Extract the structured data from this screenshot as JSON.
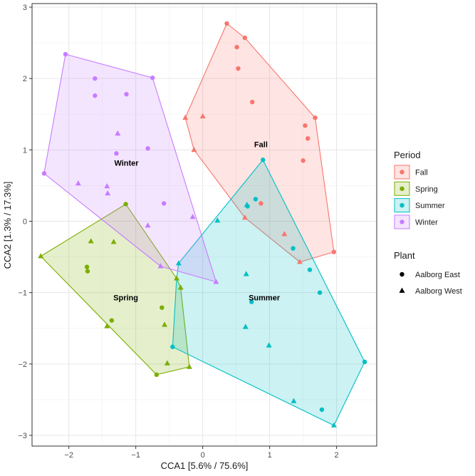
{
  "chart_data": {
    "type": "scatter",
    "title": "",
    "xlabel": "CCA1 [5.6% / 75.6%]",
    "ylabel": "CCA2 [1.3% / 17.3%]",
    "xlim": [
      -2.55,
      2.6
    ],
    "ylim": [
      -3.15,
      3.05
    ],
    "xticks": [
      -2,
      -1,
      0,
      1,
      2
    ],
    "yticks": [
      -3,
      -2,
      -1,
      0,
      1,
      2,
      3
    ],
    "grid": true,
    "legend_position": "right",
    "color_legend": {
      "title": "Period",
      "entries": [
        {
          "name": "Fall",
          "color": "#F8766D"
        },
        {
          "name": "Spring",
          "color": "#7CAE00"
        },
        {
          "name": "Summer",
          "color": "#00BFC4"
        },
        {
          "name": "Winter",
          "color": "#C77CFF"
        }
      ]
    },
    "shape_legend": {
      "title": "Plant",
      "entries": [
        {
          "name": "Aalborg East",
          "shape": "circle"
        },
        {
          "name": "Aalborg West",
          "shape": "triangle"
        }
      ]
    },
    "groups": [
      {
        "name": "Fall",
        "label": "Fall",
        "label_pos": [
          0.87,
          1.08
        ],
        "color": "#F8766D",
        "hull": [
          [
            0.36,
            2.77
          ],
          [
            0.63,
            2.57
          ],
          [
            1.68,
            1.45
          ],
          [
            1.96,
            -0.43
          ],
          [
            1.45,
            -0.57
          ],
          [
            0.63,
            0.05
          ],
          [
            -0.13,
            1.0
          ],
          [
            -0.26,
            1.45
          ]
        ],
        "points": [
          {
            "x": 0.36,
            "y": 2.77,
            "shape": "circle"
          },
          {
            "x": 0.63,
            "y": 2.57,
            "shape": "circle"
          },
          {
            "x": 0.51,
            "y": 2.44,
            "shape": "circle"
          },
          {
            "x": 0.53,
            "y": 2.14,
            "shape": "circle"
          },
          {
            "x": 0.74,
            "y": 1.67,
            "shape": "circle"
          },
          {
            "x": 1.68,
            "y": 1.45,
            "shape": "circle"
          },
          {
            "x": 1.53,
            "y": 1.34,
            "shape": "circle"
          },
          {
            "x": 1.57,
            "y": 1.16,
            "shape": "circle"
          },
          {
            "x": 1.5,
            "y": 0.85,
            "shape": "circle"
          },
          {
            "x": 0.87,
            "y": 0.25,
            "shape": "circle"
          },
          {
            "x": 1.96,
            "y": -0.43,
            "shape": "circle"
          },
          {
            "x": -0.26,
            "y": 1.45,
            "shape": "triangle"
          },
          {
            "x": 0.0,
            "y": 1.47,
            "shape": "triangle"
          },
          {
            "x": -0.13,
            "y": 1.0,
            "shape": "triangle"
          },
          {
            "x": 0.63,
            "y": 0.05,
            "shape": "triangle"
          },
          {
            "x": 1.22,
            "y": -0.18,
            "shape": "triangle"
          },
          {
            "x": 1.45,
            "y": -0.57,
            "shape": "triangle"
          }
        ]
      },
      {
        "name": "Spring",
        "label": "Spring",
        "label_pos": [
          -1.15,
          -1.07
        ],
        "color": "#7CAE00",
        "hull": [
          [
            -1.15,
            0.24
          ],
          [
            -0.39,
            -0.8
          ],
          [
            -0.33,
            -0.93
          ],
          [
            -0.2,
            -2.04
          ],
          [
            -0.69,
            -2.15
          ],
          [
            -2.42,
            -0.49
          ]
        ],
        "points": [
          {
            "x": -1.15,
            "y": 0.24,
            "shape": "circle"
          },
          {
            "x": -1.73,
            "y": -0.64,
            "shape": "circle"
          },
          {
            "x": -1.72,
            "y": -0.7,
            "shape": "circle"
          },
          {
            "x": -1.36,
            "y": -1.39,
            "shape": "circle"
          },
          {
            "x": -0.61,
            "y": -1.21,
            "shape": "circle"
          },
          {
            "x": -0.69,
            "y": -2.15,
            "shape": "circle"
          },
          {
            "x": -2.42,
            "y": -0.49,
            "shape": "triangle"
          },
          {
            "x": -1.67,
            "y": -0.28,
            "shape": "triangle"
          },
          {
            "x": -1.33,
            "y": -0.29,
            "shape": "triangle"
          },
          {
            "x": -1.43,
            "y": -1.47,
            "shape": "triangle"
          },
          {
            "x": -0.57,
            "y": -1.45,
            "shape": "triangle"
          },
          {
            "x": -0.53,
            "y": -1.99,
            "shape": "triangle"
          },
          {
            "x": -0.2,
            "y": -2.04,
            "shape": "triangle"
          },
          {
            "x": -0.39,
            "y": -0.8,
            "shape": "triangle"
          },
          {
            "x": -0.33,
            "y": -0.93,
            "shape": "triangle"
          }
        ]
      },
      {
        "name": "Summer",
        "label": "Summer",
        "label_pos": [
          0.92,
          -1.07
        ],
        "color": "#00BFC4",
        "hull": [
          [
            0.9,
            0.86
          ],
          [
            2.42,
            -1.97
          ],
          [
            1.96,
            -2.86
          ],
          [
            -0.45,
            -1.76
          ],
          [
            -0.39,
            -0.8
          ],
          [
            -0.36,
            -0.59
          ]
        ],
        "points": [
          {
            "x": 0.9,
            "y": 0.86,
            "shape": "circle"
          },
          {
            "x": 0.79,
            "y": 0.31,
            "shape": "circle"
          },
          {
            "x": 0.67,
            "y": 0.21,
            "shape": "circle"
          },
          {
            "x": 1.35,
            "y": -0.38,
            "shape": "circle"
          },
          {
            "x": 1.6,
            "y": -0.68,
            "shape": "circle"
          },
          {
            "x": 1.75,
            "y": -1.0,
            "shape": "circle"
          },
          {
            "x": 0.73,
            "y": -1.13,
            "shape": "circle"
          },
          {
            "x": -0.45,
            "y": -1.76,
            "shape": "circle"
          },
          {
            "x": 2.42,
            "y": -1.97,
            "shape": "circle"
          },
          {
            "x": 1.78,
            "y": -2.64,
            "shape": "circle"
          },
          {
            "x": 0.22,
            "y": 0.01,
            "shape": "triangle"
          },
          {
            "x": 0.66,
            "y": 0.23,
            "shape": "triangle"
          },
          {
            "x": -0.36,
            "y": -0.59,
            "shape": "triangle"
          },
          {
            "x": 0.65,
            "y": -0.74,
            "shape": "triangle"
          },
          {
            "x": 0.64,
            "y": -1.48,
            "shape": "triangle"
          },
          {
            "x": 0.99,
            "y": -1.74,
            "shape": "triangle"
          },
          {
            "x": 1.36,
            "y": -2.52,
            "shape": "triangle"
          },
          {
            "x": 1.96,
            "y": -2.86,
            "shape": "triangle"
          }
        ]
      },
      {
        "name": "Winter",
        "label": "Winter",
        "label_pos": [
          -1.14,
          0.82
        ],
        "color": "#C77CFF",
        "hull": [
          [
            -2.05,
            2.34
          ],
          [
            -0.75,
            2.01
          ],
          [
            0.2,
            -0.85
          ],
          [
            -0.63,
            -0.63
          ],
          [
            -2.37,
            0.67
          ]
        ],
        "points": [
          {
            "x": -2.05,
            "y": 2.34,
            "shape": "circle"
          },
          {
            "x": -0.75,
            "y": 2.01,
            "shape": "circle"
          },
          {
            "x": -1.61,
            "y": 2.0,
            "shape": "circle"
          },
          {
            "x": -1.61,
            "y": 1.76,
            "shape": "circle"
          },
          {
            "x": -1.14,
            "y": 1.78,
            "shape": "circle"
          },
          {
            "x": -0.82,
            "y": 1.02,
            "shape": "circle"
          },
          {
            "x": -1.29,
            "y": 0.95,
            "shape": "circle"
          },
          {
            "x": -2.37,
            "y": 0.67,
            "shape": "circle"
          },
          {
            "x": -0.58,
            "y": 0.25,
            "shape": "circle"
          },
          {
            "x": -1.27,
            "y": 1.23,
            "shape": "triangle"
          },
          {
            "x": -1.86,
            "y": 0.53,
            "shape": "triangle"
          },
          {
            "x": -1.43,
            "y": 0.49,
            "shape": "triangle"
          },
          {
            "x": -1.42,
            "y": 0.39,
            "shape": "triangle"
          },
          {
            "x": -0.82,
            "y": -0.06,
            "shape": "triangle"
          },
          {
            "x": -0.15,
            "y": 0.06,
            "shape": "triangle"
          },
          {
            "x": -0.63,
            "y": -0.63,
            "shape": "triangle"
          },
          {
            "x": 0.2,
            "y": -0.85,
            "shape": "triangle"
          }
        ]
      }
    ]
  }
}
